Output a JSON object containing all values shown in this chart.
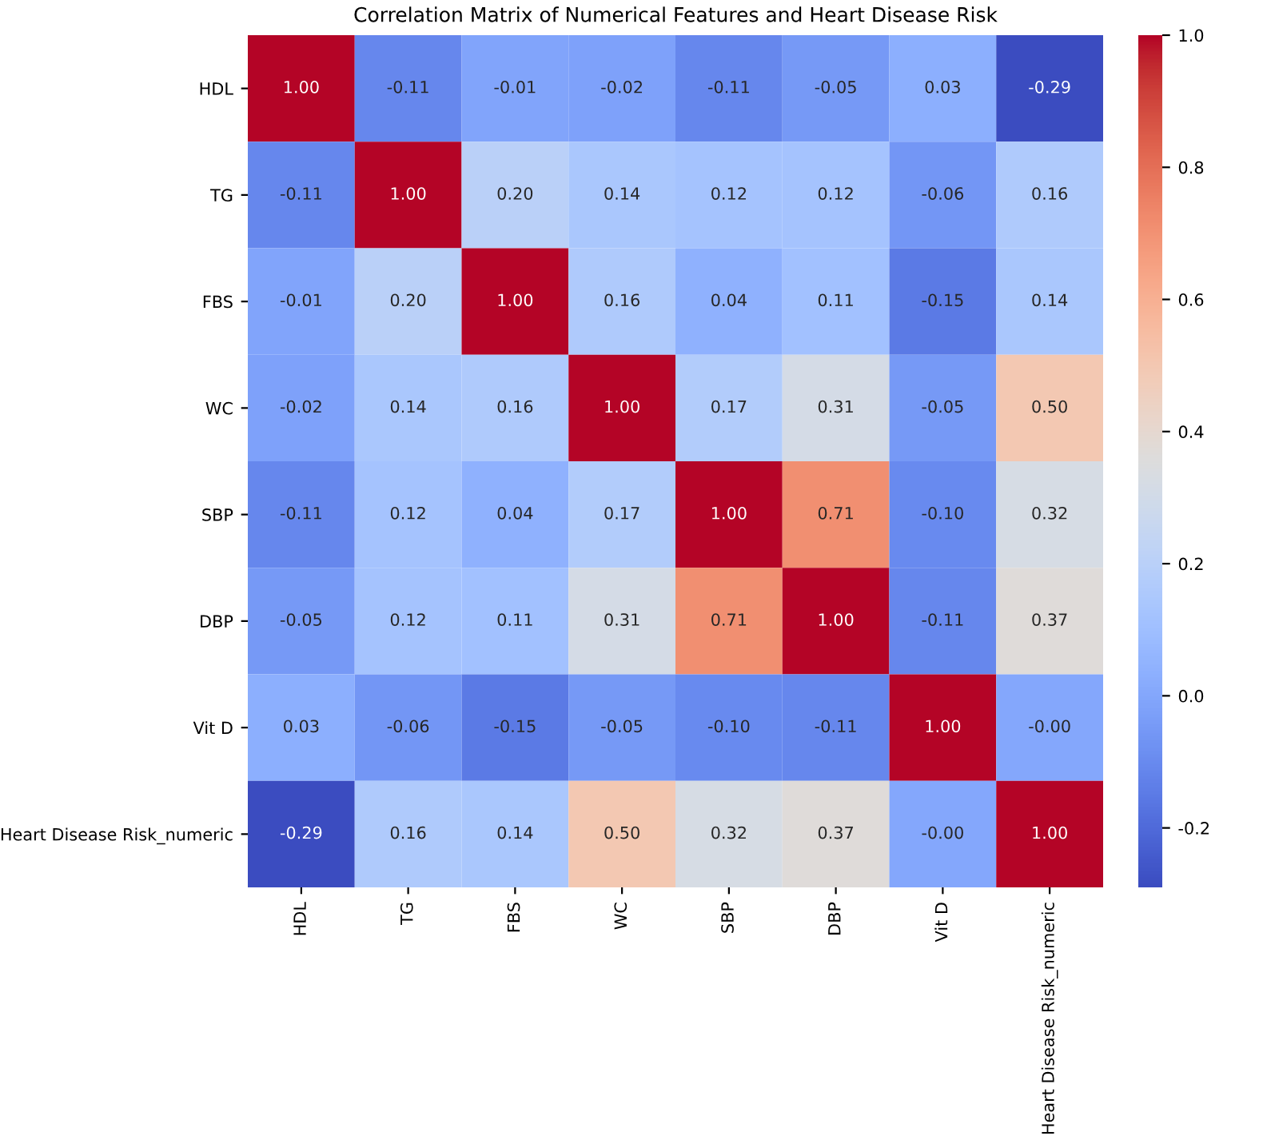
{
  "chart_data": {
    "type": "heatmap",
    "title": "Correlation Matrix of Numerical Features and Heart Disease Risk",
    "categories": [
      "HDL",
      "TG",
      "FBS",
      "WC",
      "SBP",
      "DBP",
      "Vit D",
      "Heart Disease Risk_numeric"
    ],
    "y_categories": [
      "HDL",
      "TG",
      "FBS",
      "WC",
      "SBP",
      "DBP",
      "Vit D",
      "Heart Disease Risk_numeric"
    ],
    "cells": [
      [
        1.0,
        -0.11,
        -0.01,
        -0.02,
        -0.11,
        -0.05,
        0.03,
        -0.29
      ],
      [
        -0.11,
        1.0,
        0.2,
        0.14,
        0.12,
        0.12,
        -0.06,
        0.16
      ],
      [
        -0.01,
        0.2,
        1.0,
        0.16,
        0.04,
        0.11,
        -0.15,
        0.14
      ],
      [
        -0.02,
        0.14,
        0.16,
        1.0,
        0.17,
        0.31,
        -0.05,
        0.5
      ],
      [
        -0.11,
        0.12,
        0.04,
        0.17,
        1.0,
        0.71,
        -0.1,
        0.32
      ],
      [
        -0.05,
        0.12,
        0.11,
        0.31,
        0.71,
        1.0,
        -0.11,
        0.37
      ],
      [
        0.03,
        -0.06,
        -0.15,
        -0.05,
        -0.1,
        -0.11,
        1.0,
        0.0
      ],
      [
        -0.29,
        0.16,
        0.14,
        0.5,
        0.32,
        0.37,
        0.0,
        1.0
      ]
    ],
    "cell_labels": [
      [
        "1.00",
        "-0.11",
        "-0.01",
        "-0.02",
        "-0.11",
        "-0.05",
        "0.03",
        "-0.29"
      ],
      [
        "-0.11",
        "1.00",
        "0.20",
        "0.14",
        "0.12",
        "0.12",
        "-0.06",
        "0.16"
      ],
      [
        "-0.01",
        "0.20",
        "1.00",
        "0.16",
        "0.04",
        "0.11",
        "-0.15",
        "0.14"
      ],
      [
        "-0.02",
        "0.14",
        "0.16",
        "1.00",
        "0.17",
        "0.31",
        "-0.05",
        "0.50"
      ],
      [
        "-0.11",
        "0.12",
        "0.04",
        "0.17",
        "1.00",
        "0.71",
        "-0.10",
        "0.32"
      ],
      [
        "-0.05",
        "0.12",
        "0.11",
        "0.31",
        "0.71",
        "1.00",
        "-0.11",
        "0.37"
      ],
      [
        "0.03",
        "-0.06",
        "-0.15",
        "-0.05",
        "-0.10",
        "-0.11",
        "1.00",
        "-0.00"
      ],
      [
        "-0.29",
        "0.16",
        "0.14",
        "0.50",
        "0.32",
        "0.37",
        "-0.00",
        "1.00"
      ]
    ],
    "clim": [
      -0.29,
      1.0
    ],
    "cticks": [
      -0.2,
      {
        "value": 0,
        "label": "0.0"
      },
      0.2,
      0.4,
      0.6,
      0.8,
      {
        "value": 1,
        "label": "1.0"
      }
    ]
  }
}
